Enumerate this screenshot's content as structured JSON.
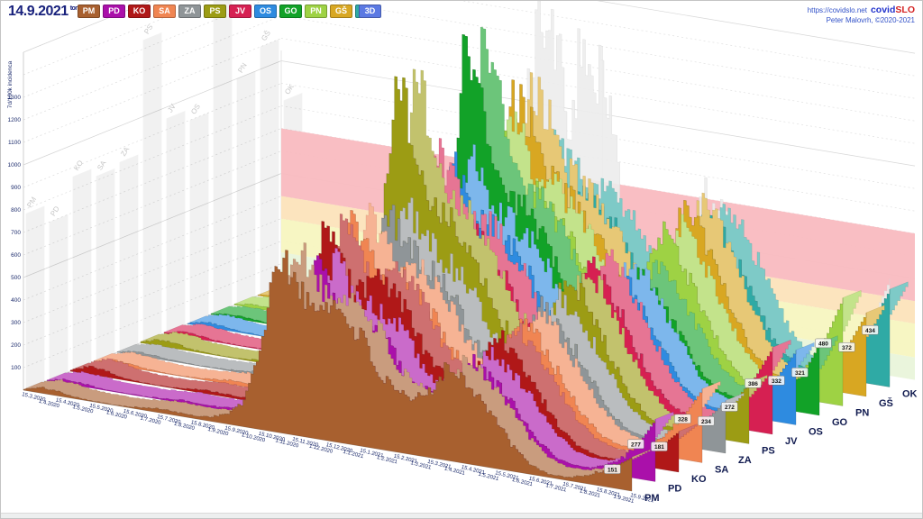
{
  "header": {
    "date": "14.9.2021",
    "date_suffix": "tor",
    "mode_button": "3D",
    "site_link": "https://covidslo.net",
    "brand_covid": "covid",
    "brand_slo": "SLO",
    "credit": "Peter Malovrh, ©2020-2021"
  },
  "chart_data": {
    "type": "area",
    "subtype": "3d-ridgeline",
    "title": "",
    "ylabel": "7d/100k incidenca",
    "ylim": [
      0,
      1500
    ],
    "yticks": [
      100,
      200,
      300,
      400,
      500,
      600,
      700,
      800,
      900,
      1000,
      1100,
      1200,
      1300
    ],
    "grid": "dashed",
    "legend_position": "top",
    "dates": [
      "15.3.2020",
      "1.4.2020",
      "15.4.2020",
      "1.5.2020",
      "15.5.2020",
      "1.6.2020",
      "15.6.2020",
      "1.7.2020",
      "15.7.2020",
      "1.8.2020",
      "15.8.2020",
      "1.9.2020",
      "15.9.2020",
      "1.10.2020",
      "15.10.2020",
      "1.11.2020",
      "15.11.2020",
      "1.12.2020",
      "15.12.2020",
      "1.1.2021",
      "15.1.2021",
      "1.2.2021",
      "15.2.2021",
      "1.3.2021",
      "15.3.2021",
      "1.4.2021",
      "15.4.2021",
      "1.5.2021",
      "15.5.2021",
      "1.6.2021",
      "15.6.2021",
      "1.7.2021",
      "15.7.2021",
      "1.8.2021",
      "15.8.2021",
      "1.9.2021",
      "15.9.2021"
    ],
    "series": [
      {
        "name": "PM",
        "color": "#A8602F",
        "last_label": "151",
        "values": [
          5,
          25,
          20,
          8,
          3,
          2,
          4,
          10,
          18,
          15,
          12,
          20,
          45,
          110,
          380,
          780,
          700,
          560,
          620,
          560,
          480,
          330,
          260,
          240,
          300,
          420,
          380,
          300,
          200,
          100,
          40,
          15,
          12,
          30,
          60,
          100,
          151
        ]
      },
      {
        "name": "PD",
        "color": "#AA10AA",
        "last_label": "277",
        "values": [
          4,
          20,
          15,
          6,
          2,
          2,
          3,
          8,
          14,
          12,
          10,
          18,
          40,
          100,
          300,
          520,
          700,
          560,
          540,
          500,
          430,
          300,
          240,
          220,
          280,
          400,
          360,
          280,
          190,
          95,
          35,
          14,
          12,
          35,
          80,
          160,
          277
        ]
      },
      {
        "name": "KO",
        "color": "#B01818",
        "last_label": "181",
        "values": [
          6,
          35,
          30,
          10,
          4,
          2,
          3,
          9,
          16,
          13,
          11,
          22,
          50,
          130,
          420,
          860,
          680,
          560,
          640,
          580,
          500,
          340,
          260,
          230,
          300,
          480,
          430,
          330,
          210,
          100,
          40,
          15,
          10,
          25,
          55,
          110,
          181
        ]
      },
      {
        "name": "SA",
        "color": "#F08552",
        "last_label": "328",
        "values": [
          4,
          22,
          18,
          7,
          3,
          2,
          4,
          10,
          18,
          14,
          12,
          20,
          48,
          120,
          400,
          820,
          740,
          580,
          610,
          550,
          470,
          320,
          250,
          230,
          310,
          500,
          450,
          340,
          220,
          110,
          45,
          18,
          15,
          45,
          110,
          210,
          328
        ]
      },
      {
        "name": "ZA",
        "color": "#8F9598",
        "last_label": "234",
        "values": [
          3,
          18,
          14,
          6,
          2,
          2,
          3,
          8,
          15,
          12,
          10,
          18,
          42,
          115,
          340,
          620,
          840,
          700,
          620,
          555,
          475,
          325,
          255,
          235,
          315,
          520,
          470,
          350,
          225,
          105,
          40,
          16,
          12,
          35,
          80,
          150,
          234
        ]
      },
      {
        "name": "PS",
        "color": "#9C9C14",
        "last_label": "272",
        "values": [
          5,
          28,
          22,
          8,
          3,
          2,
          4,
          12,
          22,
          17,
          14,
          25,
          60,
          160,
          520,
          1340,
          1150,
          850,
          800,
          700,
          580,
          390,
          300,
          270,
          360,
          600,
          540,
          400,
          250,
          120,
          45,
          18,
          14,
          40,
          90,
          170,
          272
        ]
      },
      {
        "name": "JV",
        "color": "#D62052",
        "last_label": "386",
        "values": [
          4,
          20,
          16,
          6,
          2,
          2,
          4,
          10,
          18,
          14,
          12,
          22,
          55,
          140,
          460,
          950,
          860,
          660,
          690,
          615,
          520,
          355,
          275,
          255,
          340,
          620,
          560,
          420,
          265,
          125,
          50,
          20,
          16,
          55,
          130,
          250,
          386
        ]
      },
      {
        "name": "OS",
        "color": "#2E8BE0",
        "last_label": "332",
        "values": [
          4,
          22,
          17,
          7,
          3,
          2,
          4,
          10,
          18,
          14,
          12,
          21,
          52,
          135,
          380,
          760,
          900,
          700,
          660,
          590,
          500,
          345,
          265,
          245,
          330,
          560,
          500,
          380,
          245,
          115,
          45,
          18,
          14,
          45,
          110,
          215,
          332
        ]
      },
      {
        "name": "GO",
        "color": "#12A228",
        "last_label": "321",
        "values": [
          3,
          15,
          12,
          5,
          2,
          2,
          3,
          8,
          14,
          11,
          9,
          18,
          45,
          130,
          480,
          1420,
          1100,
          780,
          740,
          650,
          540,
          365,
          280,
          255,
          340,
          500,
          450,
          340,
          215,
          100,
          38,
          15,
          12,
          35,
          85,
          170,
          321
        ]
      },
      {
        "name": "PN",
        "color": "#9ED244",
        "last_label": "480",
        "values": [
          3,
          16,
          13,
          5,
          2,
          2,
          3,
          9,
          16,
          12,
          10,
          19,
          48,
          135,
          470,
          1000,
          900,
          690,
          710,
          630,
          530,
          360,
          280,
          260,
          350,
          650,
          580,
          435,
          275,
          130,
          50,
          22,
          18,
          65,
          160,
          300,
          480
        ]
      },
      {
        "name": "GŠ",
        "color": "#D8A722",
        "last_label": "372",
        "values": [
          3,
          14,
          11,
          4,
          2,
          2,
          3,
          8,
          14,
          11,
          9,
          17,
          44,
          125,
          450,
          1100,
          980,
          740,
          700,
          620,
          520,
          355,
          275,
          255,
          345,
          700,
          620,
          460,
          290,
          135,
          52,
          20,
          16,
          50,
          120,
          230,
          372
        ]
      },
      {
        "name": "OK",
        "color": "#2FAAA5",
        "last_label": "434",
        "values": [
          3,
          15,
          12,
          5,
          2,
          2,
          3,
          8,
          15,
          12,
          10,
          18,
          46,
          125,
          430,
          820,
          750,
          580,
          620,
          560,
          480,
          330,
          260,
          240,
          330,
          620,
          560,
          430,
          270,
          130,
          50,
          22,
          18,
          60,
          150,
          290,
          434
        ]
      }
    ],
    "ghost_series": {
      "name": "max-silhouette",
      "values": [
        6,
        35,
        30,
        10,
        4,
        3,
        5,
        12,
        22,
        17,
        14,
        25,
        60,
        160,
        520,
        1420,
        1300,
        950,
        1380,
        1150,
        700,
        420,
        330,
        290,
        380,
        700,
        620,
        470,
        300,
        140,
        55,
        22,
        18,
        65,
        160,
        300,
        480
      ]
    },
    "zone_bands": [
      {
        "from": 50,
        "to": 150,
        "color": "#e9f4da"
      },
      {
        "from": 150,
        "to": 300,
        "color": "#f7f5c0"
      },
      {
        "from": 300,
        "to": 400,
        "color": "#fce3bb"
      },
      {
        "from": 400,
        "to": 700,
        "color": "#f9bac0"
      }
    ]
  }
}
